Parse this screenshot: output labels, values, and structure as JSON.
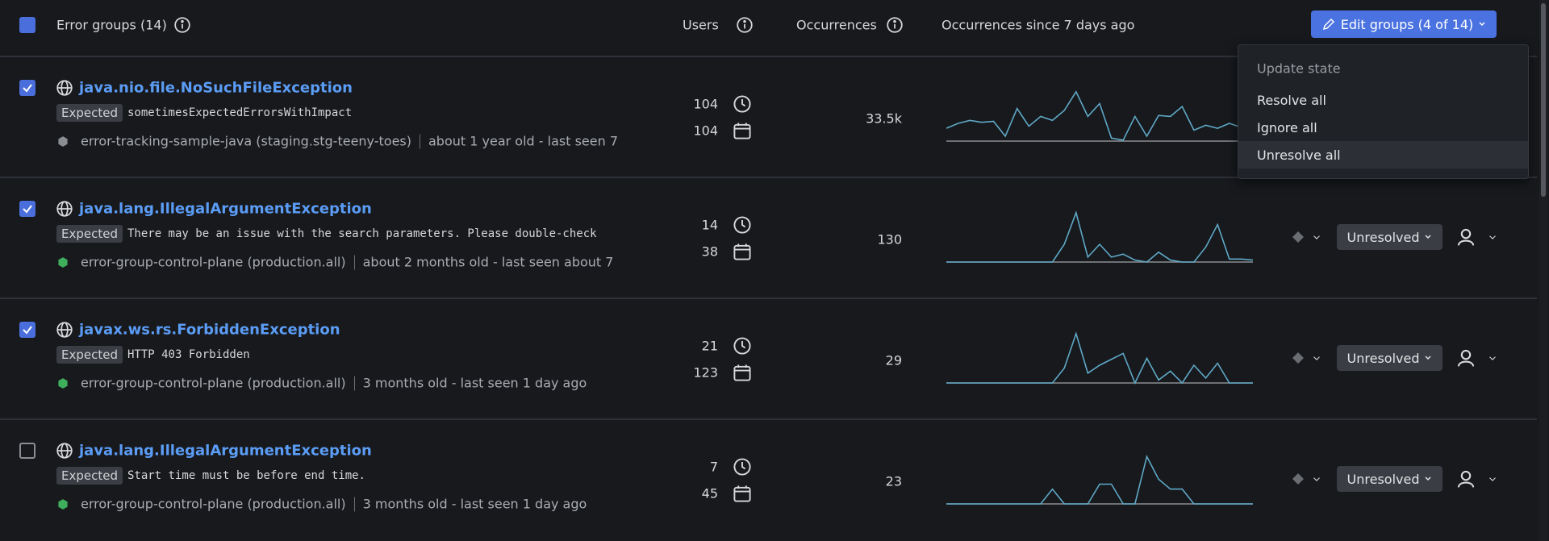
{
  "header": {
    "title": "Error groups (14)",
    "users": "Users",
    "occurrences": "Occurrences",
    "occurrences_since": "Occurrences since 7 days ago",
    "edit_button": "Edit groups (4 of 14)"
  },
  "menu": {
    "heading": "Update state",
    "items": [
      "Resolve all",
      "Ignore all",
      "Unresolve all"
    ]
  },
  "rows": [
    {
      "checked": true,
      "name": "java.nio.file.NoSuchFileException",
      "tag": "Expected",
      "message": "sometimesExpectedErrorsWithImpact",
      "service": "error-tracking-sample-java (staging.stg-teeny-toes)",
      "service_color": "#8a8d92",
      "age": "about 1 year old - last seen 7",
      "users_recent": 104,
      "users_total": 104,
      "occurrences": "33.5k",
      "trend": [
        13,
        18,
        21,
        19,
        20,
        5,
        33,
        15,
        25,
        21,
        31,
        50,
        25,
        38,
        3,
        1,
        25,
        5,
        26,
        25,
        35,
        11,
        16,
        13,
        18,
        14,
        20
      ]
    },
    {
      "checked": true,
      "name": "java.lang.IllegalArgumentException",
      "tag": "Expected",
      "message": "There may be an issue with the search parameters. Please double-check",
      "service": "error-group-control-plane (production.all)",
      "service_color": "#3fae5c",
      "age": "about 2 months old - last seen about 7",
      "users_recent": 14,
      "users_total": 38,
      "occurrences": 130,
      "status": "Unresolved",
      "trend": [
        0,
        0,
        0,
        0,
        0,
        0,
        0,
        0,
        0,
        0,
        18,
        50,
        5,
        18,
        5,
        8,
        2,
        0,
        10,
        2,
        0,
        0,
        15,
        38,
        3,
        3,
        2
      ]
    },
    {
      "checked": true,
      "name": "javax.ws.rs.ForbiddenException",
      "tag": "Expected",
      "message": "HTTP 403 Forbidden",
      "service": "error-group-control-plane (production.all)",
      "service_color": "#3fae5c",
      "age": "3 months old - last seen 1 day ago",
      "users_recent": 21,
      "users_total": 123,
      "occurrences": 29,
      "status": "Unresolved",
      "trend": [
        0,
        0,
        0,
        0,
        0,
        0,
        0,
        0,
        0,
        0,
        15,
        50,
        10,
        18,
        24,
        30,
        0,
        25,
        3,
        12,
        0,
        18,
        5,
        20,
        0,
        0,
        0
      ]
    },
    {
      "checked": false,
      "name": "java.lang.IllegalArgumentException",
      "tag": "Expected",
      "message": "Start time must be before end time.",
      "service": "error-group-control-plane (production.all)",
      "service_color": "#3fae5c",
      "age": "3 months old - last seen 1 day ago",
      "users_recent": 7,
      "users_total": 45,
      "occurrences": 23,
      "status": "Unresolved",
      "trend": [
        0,
        0,
        0,
        0,
        0,
        0,
        0,
        0,
        0,
        15,
        0,
        0,
        0,
        20,
        20,
        0,
        0,
        48,
        25,
        15,
        15,
        0,
        0,
        0,
        0,
        0,
        0
      ]
    }
  ]
}
